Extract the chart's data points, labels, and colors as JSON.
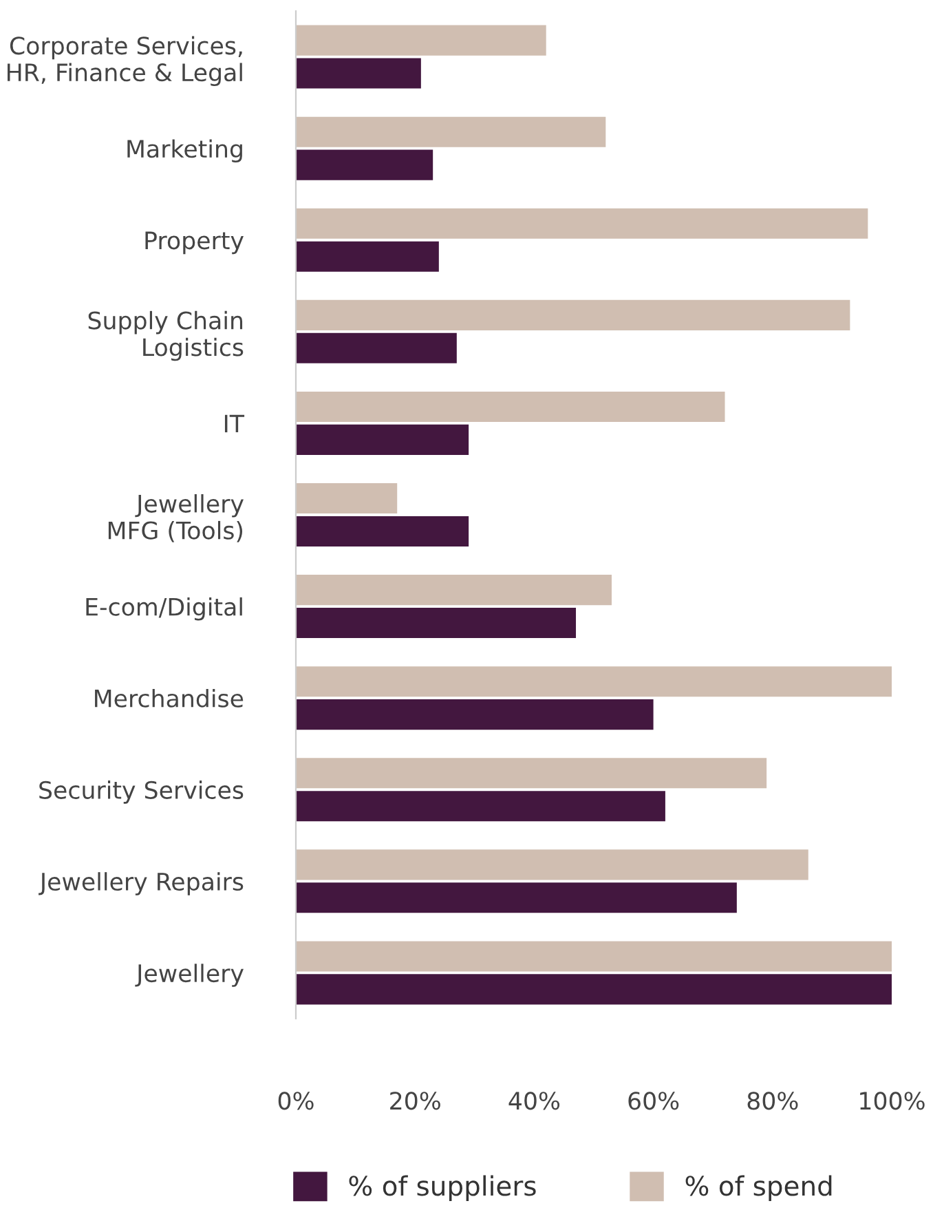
{
  "chart_data": {
    "type": "bar",
    "orientation": "horizontal",
    "categories": [
      "Corporate Services,\nHR, Finance & Legal",
      "Marketing",
      "Property",
      "Supply Chain\nLogistics",
      "IT",
      "Jewellery\nMFG (Tools)",
      "E-com/Digital",
      "Merchandise",
      "Security Services",
      "Jewellery Repairs",
      "Jewellery"
    ],
    "series": [
      {
        "name": "% of suppliers",
        "color": "#43173f",
        "values": [
          21,
          23,
          24,
          27,
          29,
          29,
          47,
          60,
          62,
          74,
          100
        ]
      },
      {
        "name": "% of spend",
        "color": "#d0beb1",
        "values": [
          42,
          52,
          96,
          93,
          72,
          17,
          53,
          100,
          79,
          86,
          100
        ]
      }
    ],
    "xlim": [
      0,
      100
    ],
    "xticks": [
      {
        "value": 0,
        "label": "0%"
      },
      {
        "value": 20,
        "label": "20%"
      },
      {
        "value": 40,
        "label": "40%"
      },
      {
        "value": 60,
        "label": "60%"
      },
      {
        "value": 80,
        "label": "80%"
      },
      {
        "value": 100,
        "label": "100%"
      }
    ],
    "legend": "bottom",
    "grid": false
  }
}
